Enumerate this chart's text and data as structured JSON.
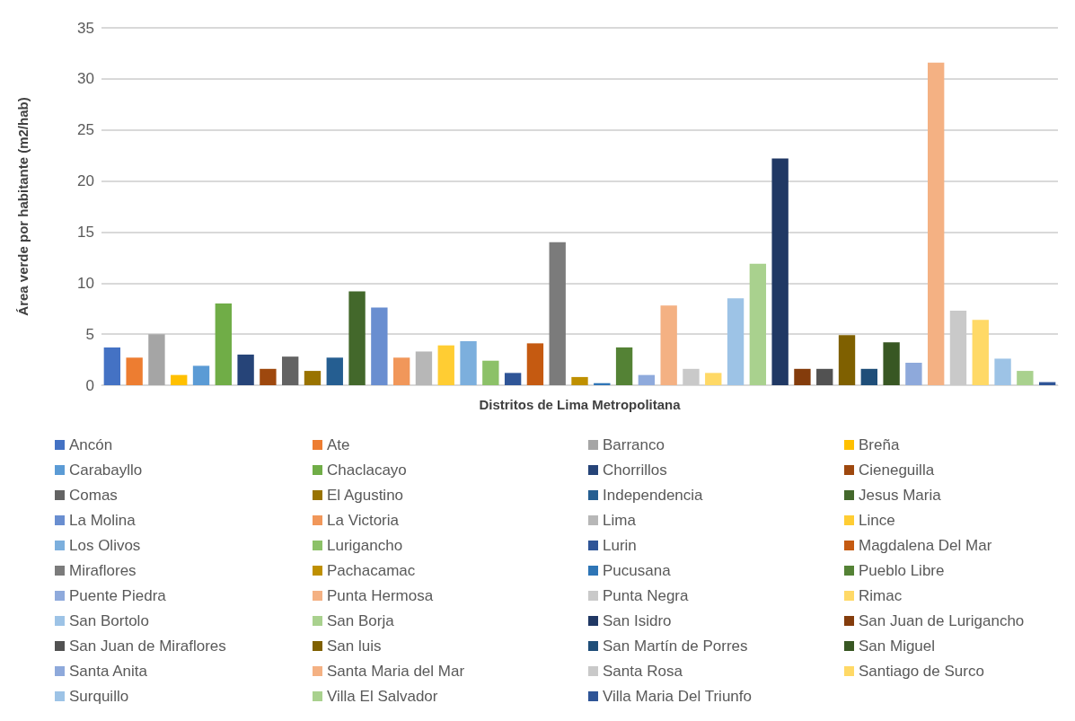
{
  "chart_data": {
    "type": "bar",
    "xlabel": "Distritos de Lima Metropolitana",
    "ylabel": "Área verde por habitante (m2/hab)",
    "categories": [
      null
    ],
    "ylim": [
      0,
      35
    ],
    "yticks": [
      0,
      5,
      10,
      15,
      20,
      25,
      30,
      35
    ],
    "grid": "y",
    "legend": "bottom",
    "series": [
      {
        "name": "Ancón",
        "color": "#4472c4",
        "values": [
          3.7
        ]
      },
      {
        "name": "Ate",
        "color": "#ed7d31",
        "values": [
          2.7
        ]
      },
      {
        "name": "Barranco",
        "color": "#a5a5a5",
        "values": [
          5.0
        ]
      },
      {
        "name": "Breña",
        "color": "#ffc000",
        "values": [
          1.0
        ]
      },
      {
        "name": "Carabayllo",
        "color": "#5b9bd5",
        "values": [
          1.9
        ]
      },
      {
        "name": "Chaclacayo",
        "color": "#70ad47",
        "values": [
          8.0
        ]
      },
      {
        "name": "Chorrillos",
        "color": "#264478",
        "values": [
          3.0
        ]
      },
      {
        "name": "Cieneguilla",
        "color": "#9e480e",
        "values": [
          1.6
        ]
      },
      {
        "name": "Comas",
        "color": "#636363",
        "values": [
          2.8
        ]
      },
      {
        "name": "El Agustino",
        "color": "#997300",
        "values": [
          1.4
        ]
      },
      {
        "name": "Independencia",
        "color": "#255e91",
        "values": [
          2.7
        ]
      },
      {
        "name": "Jesus Maria",
        "color": "#43682b",
        "values": [
          9.2
        ]
      },
      {
        "name": "La Molina",
        "color": "#698ed0",
        "values": [
          7.6
        ]
      },
      {
        "name": "La Victoria",
        "color": "#f1975a",
        "values": [
          2.7
        ]
      },
      {
        "name": "Lima",
        "color": "#b7b7b7",
        "values": [
          3.3
        ]
      },
      {
        "name": "Lince",
        "color": "#ffcd33",
        "values": [
          3.9
        ]
      },
      {
        "name": "Los Olivos",
        "color": "#7cafdd",
        "values": [
          4.3
        ]
      },
      {
        "name": "Lurigancho",
        "color": "#8cc168",
        "values": [
          2.4
        ]
      },
      {
        "name": "Lurin",
        "color": "#2f5597",
        "values": [
          1.2
        ]
      },
      {
        "name": "Magdalena Del Mar",
        "color": "#c55a11",
        "values": [
          4.1
        ]
      },
      {
        "name": "Miraflores",
        "color": "#7b7b7b",
        "values": [
          14.0
        ]
      },
      {
        "name": "Pachacamac",
        "color": "#bf9000",
        "values": [
          0.8
        ]
      },
      {
        "name": "Pucusana",
        "color": "#2e75b6",
        "values": [
          0.2
        ]
      },
      {
        "name": "Pueblo Libre",
        "color": "#548235",
        "values": [
          3.7
        ]
      },
      {
        "name": "Puente Piedra",
        "color": "#8faadc",
        "values": [
          1.0
        ]
      },
      {
        "name": "Punta Hermosa",
        "color": "#f4b183",
        "values": [
          7.8
        ]
      },
      {
        "name": "Punta Negra",
        "color": "#c9c9c9",
        "values": [
          1.6
        ]
      },
      {
        "name": "Rimac",
        "color": "#ffd966",
        "values": [
          1.2
        ]
      },
      {
        "name": "San Bortolo",
        "color": "#9dc3e6",
        "values": [
          8.5
        ]
      },
      {
        "name": "San Borja",
        "color": "#a9d18e",
        "values": [
          11.9
        ]
      },
      {
        "name": "San Isidro",
        "color": "#203864",
        "values": [
          22.2
        ]
      },
      {
        "name": "San Juan de Lurigancho",
        "color": "#843c0c",
        "values": [
          1.6
        ]
      },
      {
        "name": "San Juan de Miraflores",
        "color": "#525252",
        "values": [
          1.6
        ]
      },
      {
        "name": "San luis",
        "color": "#7f6000",
        "values": [
          4.9
        ]
      },
      {
        "name": "San Martín de Porres",
        "color": "#1f4e79",
        "values": [
          1.6
        ]
      },
      {
        "name": "San Miguel",
        "color": "#385723",
        "values": [
          4.2
        ]
      },
      {
        "name": "Santa Anita",
        "color": "#8ea9db",
        "values": [
          2.2
        ]
      },
      {
        "name": "Santa Maria del Mar",
        "color": "#f4b183",
        "values": [
          31.6
        ]
      },
      {
        "name": "Santa Rosa",
        "color": "#c9c9c9",
        "values": [
          7.3
        ]
      },
      {
        "name": "Santiago de Surco",
        "color": "#ffd966",
        "values": [
          6.4
        ]
      },
      {
        "name": "Surquillo",
        "color": "#9dc3e6",
        "values": [
          2.6
        ]
      },
      {
        "name": "Villa El Salvador",
        "color": "#a9d18e",
        "values": [
          1.4
        ]
      },
      {
        "name": "Villa Maria Del Triunfo",
        "color": "#2f5597",
        "values": [
          0.3
        ]
      }
    ]
  }
}
